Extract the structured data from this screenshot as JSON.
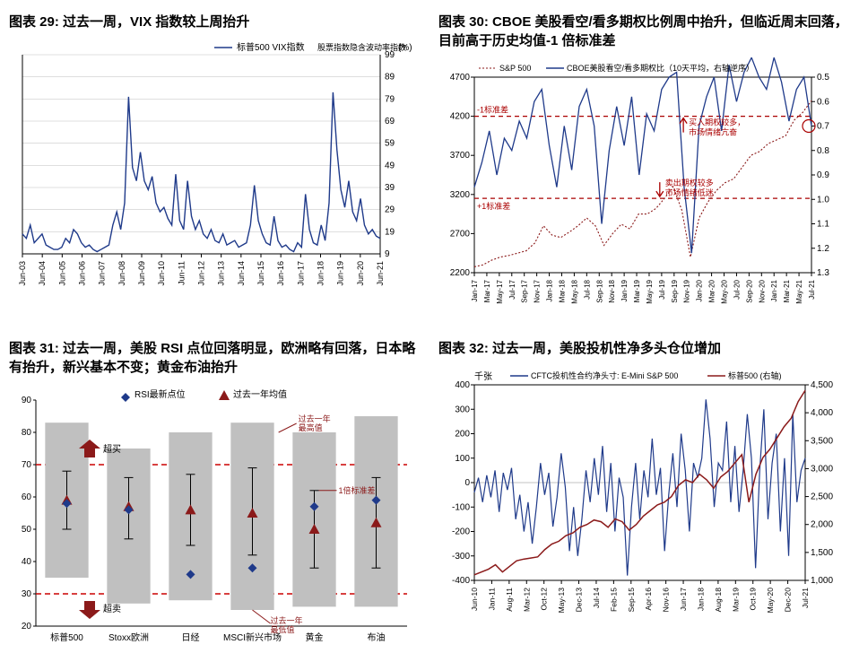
{
  "c29": {
    "figLabel": "图表 29:",
    "title": "过去一周，VIX 指数较上周抬升",
    "legend1": "标普500 VIX指数",
    "legend2": "股票指数隐含波动率指数",
    "legendUnit": "(%)",
    "line_color": "#1f3a8a",
    "grid_color": "#bfbfbf",
    "axis_color": "#000",
    "ylim": [
      9,
      99
    ],
    "ytick_step": 10,
    "xlabels": [
      "Jun-03",
      "Jun-04",
      "Jun-05",
      "Jun-06",
      "Jun-07",
      "Jun-08",
      "Jun-09",
      "Jun-10",
      "Jun-11",
      "Jun-12",
      "Jun-13",
      "Jun-14",
      "Jun-15",
      "Jun-16",
      "Jun-17",
      "Jun-18",
      "Jun-19",
      "Jun-20",
      "Jun-21"
    ],
    "series": [
      18,
      16,
      22,
      14,
      16,
      18,
      13,
      12,
      11,
      11,
      12,
      16,
      14,
      20,
      18,
      14,
      12,
      13,
      11,
      10,
      11,
      12,
      13,
      22,
      28,
      20,
      32,
      80,
      48,
      42,
      55,
      42,
      38,
      44,
      32,
      28,
      30,
      25,
      22,
      45,
      24,
      20,
      42,
      26,
      20,
      24,
      18,
      16,
      20,
      15,
      14,
      18,
      13,
      14,
      15,
      12,
      13,
      14,
      22,
      40,
      24,
      18,
      14,
      13,
      26,
      15,
      12,
      13,
      11,
      10,
      14,
      12,
      36,
      20,
      14,
      13,
      22,
      15,
      32,
      82,
      56,
      38,
      30,
      42,
      28,
      24,
      34,
      22,
      18,
      20,
      17,
      16
    ]
  },
  "c30": {
    "figLabel": "图表 30:",
    "title": "CBOE 美股看空/看多期权比例周中抬升，但临近周末回落，目前高于历史均值-1 倍标准差",
    "legend1": "S&P 500",
    "legend2": "CBOE美股看空/看多期权比（10天平均，右轴逆序）",
    "line_color": "#8b1a1a",
    "line2_color": "#1f3a8a",
    "dash_color": "#a00",
    "anno1": "-1标准差",
    "anno2": "+1标准差",
    "anno3_line1": "买入期权较多，",
    "anno3_line2": "市场情绪亢奋",
    "anno4_line1": "卖出期权较多",
    "anno4_line2": "市场情绪低迷",
    "y1lim": [
      2200,
      4700
    ],
    "y1tick_step": 500,
    "y2lim": [
      0.5,
      1.3
    ],
    "y2tick_step": 0.1,
    "y2_inverted": true,
    "band_top": 4200,
    "band_bot": 3150,
    "xlabels": [
      "Jan-17",
      "Mar-17",
      "May-17",
      "Jul-17",
      "Sep-17",
      "Nov-17",
      "Jan-18",
      "Mar-18",
      "May-18",
      "Jul-18",
      "Sep-18",
      "Nov-18",
      "Jan-19",
      "Mar-19",
      "May-19",
      "Jul-19",
      "Sep-19",
      "Nov-19",
      "Jan-20",
      "Mar-20",
      "May-20",
      "Jul-20",
      "Sep-20",
      "Nov-20",
      "Jan-21",
      "Mar-21",
      "May-21",
      "Jul-21"
    ],
    "sp500": [
      2275,
      2300,
      2360,
      2400,
      2420,
      2450,
      2480,
      2580,
      2800,
      2680,
      2650,
      2720,
      2800,
      2900,
      2800,
      2550,
      2700,
      2820,
      2760,
      2950,
      2950,
      3020,
      3150,
      3300,
      3000,
      2400,
      2900,
      3100,
      3250,
      3350,
      3400,
      3550,
      3700,
      3750,
      3850,
      3900,
      3950,
      4150,
      4250,
      4400
    ],
    "ratio": [
      0.95,
      0.85,
      0.72,
      0.9,
      0.75,
      0.8,
      0.68,
      0.75,
      0.6,
      0.55,
      0.78,
      0.95,
      0.7,
      0.88,
      0.62,
      0.55,
      0.7,
      1.1,
      0.8,
      0.62,
      0.78,
      0.58,
      0.9,
      0.65,
      0.72,
      0.55,
      0.5,
      0.48,
      0.95,
      1.22,
      0.7,
      0.58,
      0.5,
      0.72,
      0.45,
      0.6,
      0.48,
      0.42,
      0.5,
      0.55,
      0.42,
      0.52,
      0.68,
      0.55,
      0.5,
      0.7
    ]
  },
  "c31": {
    "figLabel": "图表 31:",
    "title": "过去一周，美股 RSI 点位回落明显，欧洲略有回落，日本略有抬升，新兴基本不变；黄金布油抬升",
    "legend1": "RSI最新点位",
    "legend2": "过去一年均值",
    "anno1": "超买",
    "anno2": "超卖",
    "anno3": "过去一年最高值",
    "anno4": "1倍标准差",
    "anno5": "过去一年最低值",
    "marker_color": "#1f3a8a",
    "tri_color": "#8b1a1a",
    "bar_color": "#c0c0c0",
    "dash_color": "#cc0000",
    "ylim": [
      20,
      90
    ],
    "ytick_step": 10,
    "ylines": [
      70,
      30
    ],
    "cats": [
      "标普500",
      "Stoxx欧洲",
      "日经",
      "MSCI新兴市场",
      "黄金",
      "布油"
    ],
    "bars": [
      {
        "lo": 35,
        "hi": 83
      },
      {
        "lo": 27,
        "hi": 75
      },
      {
        "lo": 28,
        "hi": 80
      },
      {
        "lo": 25,
        "hi": 83
      },
      {
        "lo": 26,
        "hi": 80
      },
      {
        "lo": 26,
        "hi": 85
      }
    ],
    "err": [
      {
        "lo": 50,
        "hi": 68
      },
      {
        "lo": 47,
        "hi": 66
      },
      {
        "lo": 45,
        "hi": 67
      },
      {
        "lo": 42,
        "hi": 69
      },
      {
        "lo": 38,
        "hi": 62
      },
      {
        "lo": 38,
        "hi": 66
      }
    ],
    "tri": [
      59,
      57,
      56,
      55,
      50,
      52
    ],
    "pts": [
      58,
      56,
      36,
      38,
      57,
      59
    ]
  },
  "c32": {
    "figLabel": "图表 32:",
    "title": "过去一周，美股投机性净多头仓位增加",
    "yAxisLabel": "千张",
    "legend1": "CFTC投机性合约净头寸: E-Mini S&P 500",
    "legend2": "标普500 (右轴)",
    "line1_color": "#1f3a8a",
    "line2_color": "#8b1a1a",
    "y1lim": [
      -400,
      400
    ],
    "y1tick_step": 100,
    "y2lim": [
      1000,
      4500
    ],
    "y2tick_step": 500,
    "xlabels": [
      "Jun-10",
      "Jan-11",
      "Aug-11",
      "Mar-12",
      "Oct-12",
      "May-13",
      "Dec-13",
      "Jul-14",
      "Feb-15",
      "Sep-15",
      "Apr-16",
      "Nov-16",
      "Jun-17",
      "Jan-18",
      "Aug-18",
      "Mar-19",
      "Oct-19",
      "May-20",
      "Dec-20",
      "Jul-21"
    ],
    "cftc": [
      -40,
      20,
      -80,
      30,
      -60,
      50,
      -120,
      40,
      -30,
      60,
      -150,
      -50,
      -200,
      -80,
      -250,
      -100,
      80,
      -50,
      40,
      -180,
      -60,
      120,
      -20,
      -280,
      -100,
      -300,
      -150,
      50,
      -80,
      100,
      -50,
      150,
      -120,
      80,
      -200,
      20,
      -60,
      -380,
      -100,
      80,
      -150,
      50,
      -60,
      180,
      -50,
      60,
      -280,
      -50,
      120,
      -100,
      200,
      50,
      -200,
      80,
      20,
      100,
      340,
      180,
      -100,
      80,
      50,
      250,
      -80,
      150,
      -120,
      50,
      280,
      100,
      -350,
      50,
      300,
      -150,
      80,
      200,
      -200,
      100,
      -300,
      280,
      -80,
      50,
      100
    ],
    "sp500": [
      1100,
      1150,
      1200,
      1280,
      1150,
      1250,
      1350,
      1380,
      1400,
      1420,
      1550,
      1650,
      1700,
      1800,
      1850,
      1950,
      2000,
      2080,
      2050,
      1950,
      2100,
      2050,
      1900,
      2000,
      2150,
      2250,
      2350,
      2400,
      2500,
      2700,
      2800,
      2750,
      2900,
      2800,
      2650,
      2850,
      2950,
      3100,
      3250,
      2400,
      2900,
      3200,
      3350,
      3550,
      3750,
      3900,
      4200,
      4400
    ]
  }
}
